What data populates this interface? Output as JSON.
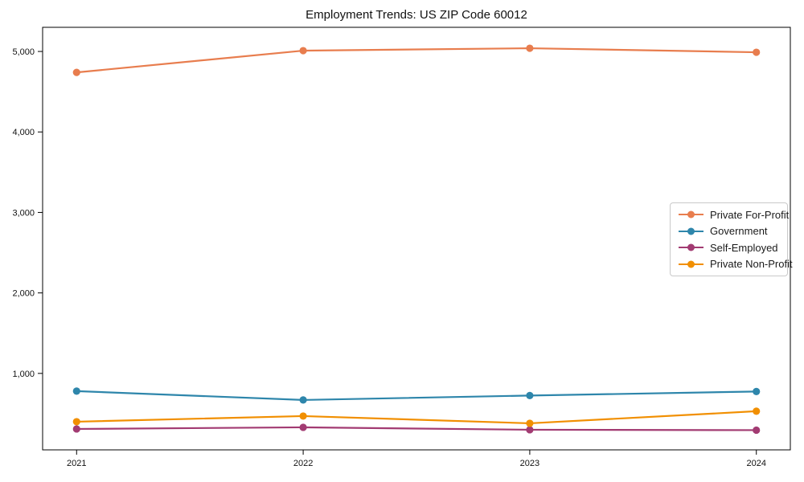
{
  "chart_data": {
    "type": "line",
    "title": "Employment Trends: US ZIP Code 60012",
    "xlabel": "",
    "ylabel": "",
    "x": [
      2021,
      2022,
      2023,
      2024
    ],
    "xticklabels": [
      "2021",
      "2022",
      "2023",
      "2024"
    ],
    "yticks": [
      1000,
      2000,
      3000,
      4000,
      5000
    ],
    "yticklabels": [
      "1,000",
      "2,000",
      "3,000",
      "4,000",
      "5,000"
    ],
    "xlim": [
      2020.85,
      2024.15
    ],
    "ylim": [
      50,
      5300
    ],
    "grid": false,
    "legend_position": "center right",
    "axis_color": "#000000",
    "background_color": "#ffffff",
    "series": [
      {
        "name": "Private For-Profit",
        "color": "#E87D4E",
        "values": [
          4740,
          5010,
          5040,
          4990
        ]
      },
      {
        "name": "Government",
        "color": "#2E86AB",
        "values": [
          780,
          670,
          725,
          775
        ]
      },
      {
        "name": "Self-Employed",
        "color": "#A23B72",
        "values": [
          310,
          330,
          300,
          295
        ]
      },
      {
        "name": "Private Non-Profit",
        "color": "#F18F01",
        "values": [
          400,
          470,
          380,
          530
        ]
      }
    ]
  }
}
